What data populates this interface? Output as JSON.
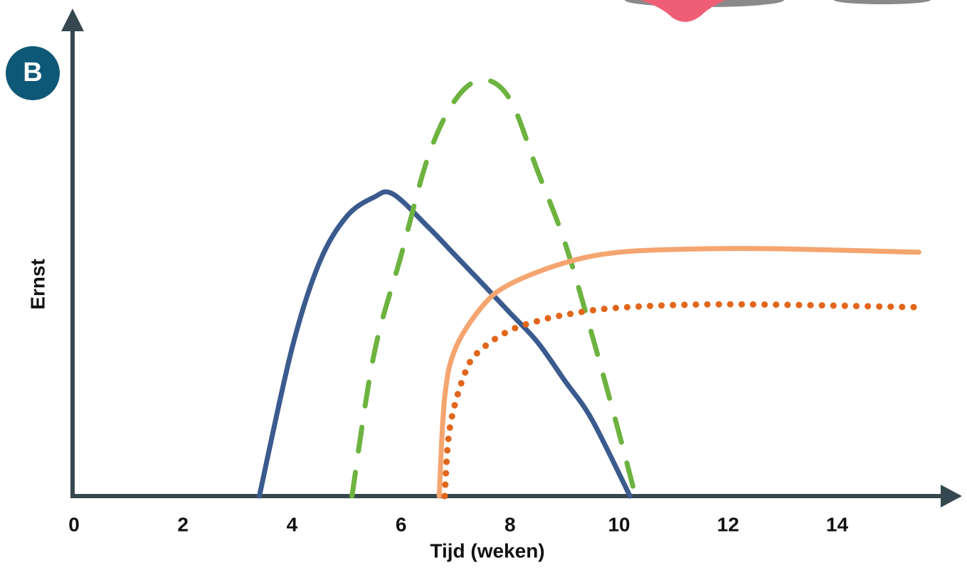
{
  "chart_data": {
    "type": "line",
    "panel_label": "B",
    "x_label": "Tijd (weken)",
    "y_label": "Ernst",
    "xlim": [
      0,
      16.2
    ],
    "xticks": [
      0,
      2,
      4,
      6,
      8,
      10,
      12,
      14
    ],
    "ylim": [
      0,
      100
    ],
    "grid": false,
    "series": [
      {
        "color": "#3b5a8e",
        "style": "solid",
        "x": [
          3.4,
          4,
          4.5,
          5,
          5.5,
          5.85,
          6.5,
          7,
          7.5,
          8,
          8.5,
          9,
          9.5,
          10.2
        ],
        "values": [
          0,
          30.7,
          48.4,
          58,
          62,
          62.7,
          55.8,
          49.9,
          44,
          38,
          32,
          24,
          15.9,
          0
        ]
      },
      {
        "color": "#6db33f",
        "style": "dashed",
        "x": [
          5.1,
          5.5,
          6,
          6.5,
          7,
          7.5,
          8,
          8.5,
          9,
          9.5,
          10,
          10.3
        ],
        "values": [
          0,
          29.2,
          49.9,
          70.5,
          82.3,
          86.4,
          82.3,
          67.6,
          52.8,
          33.6,
          13,
          0
        ]
      },
      {
        "color": "#f5a56f",
        "style": "solid",
        "x": [
          6.7,
          6.8,
          7,
          7.5,
          8,
          9,
          10,
          11.5,
          13,
          15.5
        ],
        "values": [
          0,
          20.4,
          30.7,
          39.5,
          44,
          48.4,
          50.6,
          51.3,
          51.3,
          50.6
        ]
      },
      {
        "color": "#e2661b",
        "style": "dotted",
        "x": [
          6.8,
          6.9,
          7.2,
          7.5,
          8,
          8.5,
          9,
          10,
          12,
          15.5
        ],
        "values": [
          0,
          14.5,
          26.3,
          30.7,
          34.4,
          36.3,
          37.6,
          39.1,
          39.8,
          39.2
        ]
      }
    ]
  }
}
